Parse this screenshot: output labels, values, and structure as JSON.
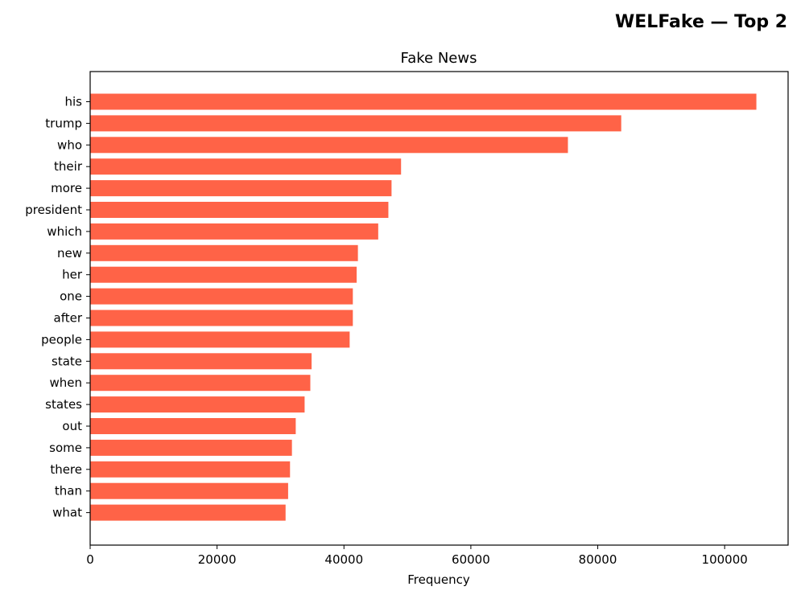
{
  "figure": {
    "suptitle": "WELFake — Top 2"
  },
  "chart_data": {
    "type": "bar",
    "orientation": "horizontal",
    "title": "Fake News",
    "xlabel": "Frequency",
    "ylabel": "",
    "bar_color": "#ff6347",
    "xlim": [
      0,
      110000
    ],
    "xticks": [
      0,
      20000,
      40000,
      60000,
      80000,
      100000
    ],
    "grid": false,
    "categories": [
      "his",
      "trump",
      "who",
      "their",
      "more",
      "president",
      "which",
      "new",
      "her",
      "one",
      "after",
      "people",
      "state",
      "when",
      "states",
      "out",
      "some",
      "there",
      "than",
      "what"
    ],
    "values": [
      105000,
      83700,
      75300,
      49000,
      47500,
      47000,
      45400,
      42200,
      42000,
      41400,
      41400,
      40900,
      34900,
      34700,
      33800,
      32400,
      31800,
      31500,
      31200,
      30800
    ]
  }
}
